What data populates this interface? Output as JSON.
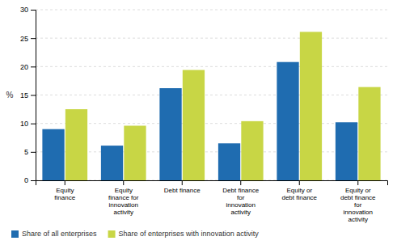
{
  "chart_data": {
    "type": "bar",
    "categories": [
      "Equity\nfinance",
      "Equity\nfinance for\ninnovation\nactivity",
      "Debt finance",
      "Debt finance\nfor\ninnovation\nactivity",
      "Equity or\ndebt finance",
      "Equity or\ndebt finance\nfor\ninnovation\nactivity"
    ],
    "series": [
      {
        "name": "Share of all enterprises",
        "color": "#1f6cb0",
        "values": [
          9.0,
          6.1,
          16.2,
          6.5,
          20.8,
          10.2
        ]
      },
      {
        "name": "Share of enterprises with innovation activity",
        "color": "#c8d645",
        "values": [
          12.5,
          9.6,
          19.4,
          10.4,
          26.1,
          16.4
        ]
      }
    ],
    "ylabel": "%",
    "ylim": [
      0,
      30
    ],
    "yticks": [
      0,
      5,
      10,
      15,
      20,
      25,
      30
    ],
    "grid": true,
    "legend": "bottom"
  }
}
